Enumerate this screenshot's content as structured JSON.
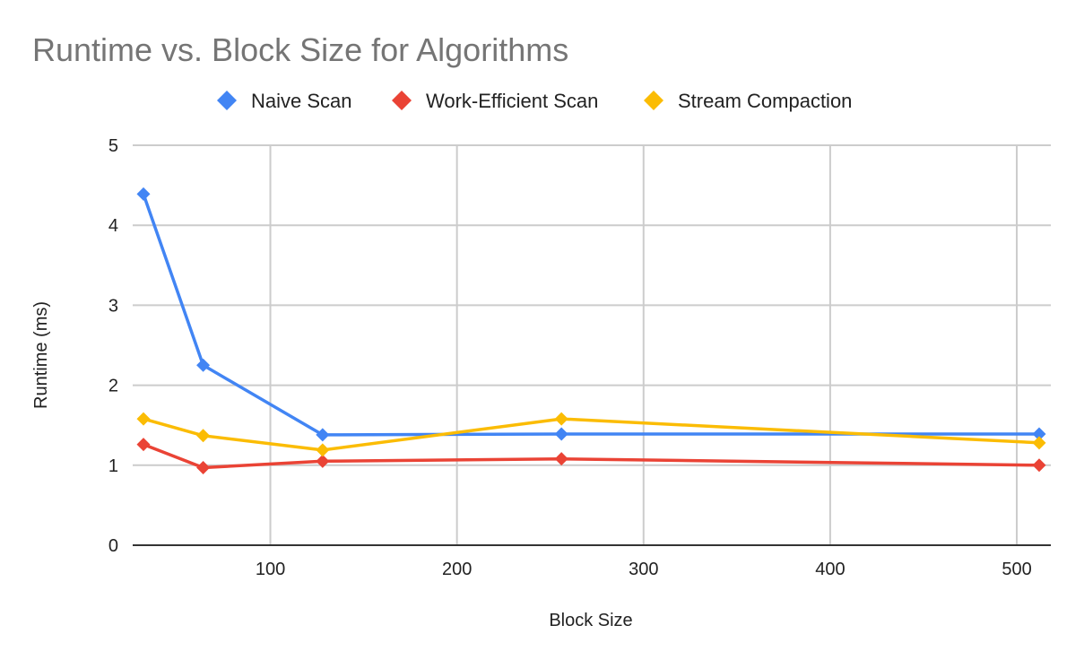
{
  "chart_data": {
    "type": "line",
    "title": "Runtime vs. Block Size for Algorithms",
    "xlabel": "Block Size",
    "ylabel": "Runtime (ms)",
    "xlim": [
      32,
      512
    ],
    "ylim": [
      0,
      5
    ],
    "x_ticks": [
      100,
      200,
      300,
      400,
      500
    ],
    "y_ticks": [
      0,
      1,
      2,
      3,
      4,
      5
    ],
    "grid": true,
    "legend_position": "top",
    "x": [
      32,
      64,
      128,
      256,
      512
    ],
    "series": [
      {
        "name": "Naive Scan",
        "color": "#4285f4",
        "marker": "diamond",
        "values": [
          4.39,
          2.25,
          1.38,
          1.39,
          1.39
        ]
      },
      {
        "name": "Work-Efficient Scan",
        "color": "#ea4335",
        "marker": "diamond",
        "values": [
          1.26,
          0.97,
          1.05,
          1.08,
          1.0
        ]
      },
      {
        "name": "Stream Compaction",
        "color": "#fbbc04",
        "marker": "diamond",
        "values": [
          1.58,
          1.37,
          1.19,
          1.58,
          1.28
        ]
      }
    ]
  }
}
